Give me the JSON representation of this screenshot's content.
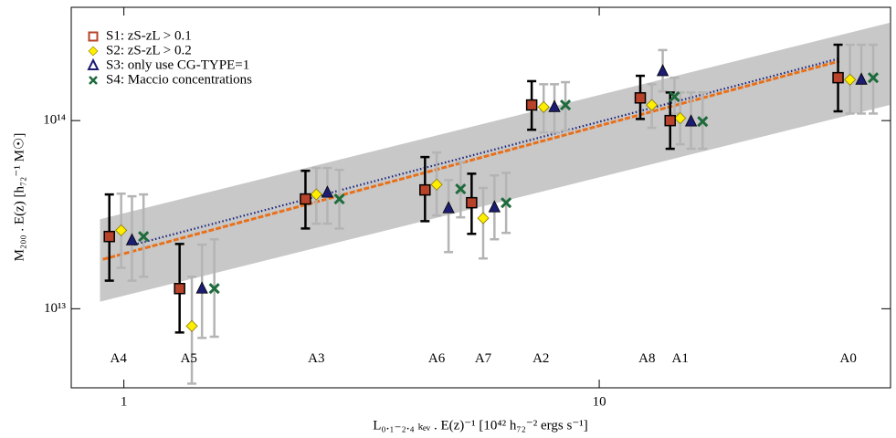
{
  "chart_data": {
    "type": "scatter",
    "xlabel": "L₀.₁₋₂.₄ ₖₑᵥ . E(z)⁻¹   [10⁴² h₇₂⁻² ergs s⁻¹]",
    "ylabel": "M₂₀₀ . E(z)   [h₇₂⁻¹ M☉]",
    "xscale": "log",
    "yscale": "log",
    "xlim": [
      0.775,
      41
    ],
    "ylim": [
      3800000000000.0,
      400000000000000.0
    ],
    "xticks": [
      1,
      10
    ],
    "yticks": [
      {
        "value": 10000000000000.0,
        "label": "10¹³"
      },
      {
        "value": 100000000000000.0,
        "label": "10¹⁴"
      }
    ],
    "legend": "upper left",
    "band": {
      "x": [
        0.891,
        40.8
      ],
      "lower": [
        10900000000000.0,
        121000000000000.0
      ],
      "upper": [
        29900000000000.0,
        331000000000000.0
      ],
      "color": "#c8c8c8"
    },
    "fits": [
      {
        "x": [
          1.05,
          32
        ],
        "values": [
          21900000000000.0,
          214000000000000.0
        ],
        "color": "#1a237e",
        "style": "dotted"
      },
      {
        "x": [
          0.903,
          32
        ],
        "values": [
          18300000000000.0,
          207000000000000.0
        ],
        "color": "#e8701a",
        "style": "dashed"
      }
    ],
    "series": [
      {
        "name": "S1:  zS-zL > 0.1",
        "marker": "square",
        "color": "#b8432a",
        "error_color": "#000000",
        "x": [
          0.932,
          1.31,
          2.41,
          4.3,
          5.39,
          7.21,
          12.2,
          14.1,
          31.8
        ],
        "values": [
          24200000000000.0,
          12800000000000.0,
          38300000000000.0,
          42800000000000.0,
          36600000000000.0,
          121000000000000.0,
          132000000000000.0,
          100000000000000.0,
          169000000000000.0
        ],
        "y_low": [
          14100000000000.0,
          7480000000000.0,
          26700000000000.0,
          29200000000000.0,
          25000000000000.0,
          89400000000000.0,
          102000000000000.0,
          70800000000000.0,
          112000000000000.0
        ],
        "y_high": [
          40500000000000.0,
          22100000000000.0,
          54100000000000.0,
          64000000000000.0,
          52200000000000.0,
          162000000000000.0,
          173000000000000.0,
          141000000000000.0,
          253000000000000.0
        ]
      },
      {
        "name": "S2:  zS-zL > 0.2",
        "marker": "diamond",
        "color": "#ffee00",
        "error_color": "#b4b4b4",
        "x": [
          0.987,
          1.39,
          2.54,
          4.55,
          5.7,
          7.64,
          12.9,
          14.8,
          33.7
        ],
        "values": [
          26100000000000.0,
          8090000000000.0,
          40500000000000.0,
          45700000000000.0,
          30300000000000.0,
          118000000000000.0,
          121000000000000.0,
          103000000000000.0,
          165000000000000.0
        ],
        "y_low": [
          16500000000000.0,
          4000000000000.0,
          28300000000000.0,
          31300000000000.0,
          18500000000000.0,
          86500000000000.0,
          91500000000000.0,
          74800000000000.0,
          109000000000000.0
        ],
        "y_high": [
          40900000000000.0,
          14800000000000.0,
          56000000000000.0,
          67700000000000.0,
          43800000000000.0,
          156000000000000.0,
          156000000000000.0,
          141000000000000.0,
          253000000000000.0
        ]
      },
      {
        "name": "S3:  only use CG-TYPE=1",
        "marker": "triangle",
        "color": "#1c1c72",
        "error_color": "#b4b4b4",
        "x": [
          1.04,
          1.46,
          2.68,
          4.82,
          6.02,
          8.05,
          13.6,
          15.6,
          35.6
        ],
        "values": [
          23100000000000.0,
          12800000000000.0,
          41400000000000.0,
          34200000000000.0,
          34600000000000.0,
          118000000000000.0,
          183000000000000.0,
          98900000000000.0,
          165000000000000.0
        ],
        "y_low": [
          14100000000000.0,
          7000000000000.0,
          28300000000000.0,
          20000000000000.0,
          23400000000000.0,
          86500000000000.0,
          143000000000000.0,
          70800000000000.0,
          109000000000000.0
        ],
        "y_high": [
          39600000000000.0,
          21900000000000.0,
          56000000000000.0,
          48300000000000.0,
          51100000000000.0,
          156000000000000.0,
          237000000000000.0,
          141000000000000.0,
          253000000000000.0
        ]
      },
      {
        "name": "S4:  Maccio concentrations",
        "marker": "x",
        "color": "#1e6b3c",
        "error_color": "#b4b4b4",
        "x": [
          1.1,
          1.55,
          2.84,
          5.11,
          6.37,
          8.49,
          14.4,
          16.5,
          37.7
        ],
        "values": [
          24200000000000.0,
          12800000000000.0,
          38300000000000.0,
          43300000000000.0,
          36600000000000.0,
          121000000000000.0,
          134000000000000.0,
          98900000000000.0,
          169000000000000.0
        ],
        "y_low": [
          14800000000000.0,
          7100000000000.0,
          26700000000000.0,
          30600000000000.0,
          25300000000000.0,
          88400000000000.0,
          109000000000000.0,
          70800000000000.0,
          109000000000000.0
        ],
        "y_high": [
          40500000000000.0,
          23400000000000.0,
          54700000000000.0,
          60500000000000.0,
          52800000000000.0,
          160000000000000.0,
          169000000000000.0,
          141000000000000.0,
          253000000000000.0
        ]
      }
    ],
    "annotations": [
      {
        "text": "A4",
        "x": 0.974,
        "y": 5400000000000.0
      },
      {
        "text": "A5",
        "x": 1.37,
        "y": 5400000000000.0
      },
      {
        "text": "A3",
        "x": 2.54,
        "y": 5400000000000.0
      },
      {
        "text": "A6",
        "x": 4.55,
        "y": 5400000000000.0
      },
      {
        "text": "A7",
        "x": 5.7,
        "y": 5400000000000.0
      },
      {
        "text": "A2",
        "x": 7.54,
        "y": 5400000000000.0
      },
      {
        "text": "A8",
        "x": 12.6,
        "y": 5400000000000.0
      },
      {
        "text": "A1",
        "x": 14.8,
        "y": 5400000000000.0
      },
      {
        "text": "A0",
        "x": 33.4,
        "y": 5400000000000.0
      }
    ]
  }
}
